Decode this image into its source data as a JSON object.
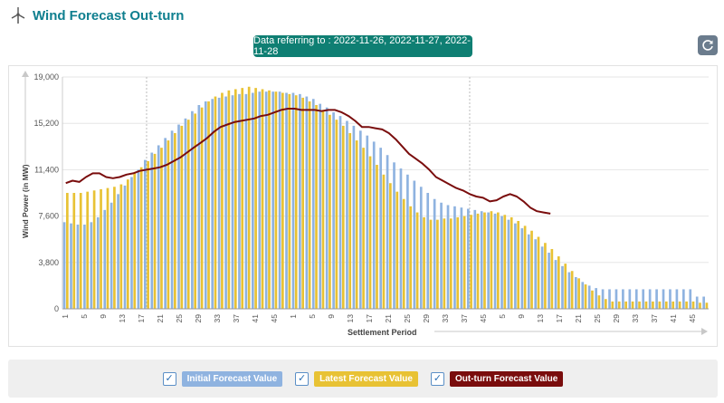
{
  "header": {
    "title": "Wind Forecast Out-turn",
    "icon": "wind-turbine-icon"
  },
  "date_pill": {
    "text": "Data referring to : 2022-11-26, 2022-11-27, 2022-11-28"
  },
  "refresh": {
    "icon": "refresh-icon"
  },
  "legend": {
    "items": [
      {
        "label": "Initial Forecast Value",
        "checked": true,
        "color": "#8fb3e0"
      },
      {
        "label": "Latest Forecast Value",
        "checked": true,
        "color": "#e8c234"
      },
      {
        "label": "Out-turn Forecast Value",
        "checked": true,
        "color": "#7a0d0d"
      }
    ]
  },
  "chart_data": {
    "type": "bar",
    "xlabel": "Settlement Period",
    "ylabel": "Wind Power (in MW)",
    "ylim": [
      0,
      19000
    ],
    "y_ticks": [
      "0",
      "3,800",
      "7,600",
      "11,400",
      "15,200",
      "19,000"
    ],
    "x_tick_labels": [
      "1",
      "5",
      "9",
      "13",
      "17",
      "21",
      "25",
      "29",
      "33",
      "37",
      "41",
      "45",
      "1",
      "5",
      "9",
      "13",
      "17",
      "21",
      "25",
      "29",
      "33",
      "37",
      "45",
      "5",
      "9",
      "13",
      "17",
      "21",
      "25",
      "29",
      "33",
      "37",
      "41",
      "45"
    ],
    "grid": true,
    "series": [
      {
        "name": "Initial Forecast Value",
        "type": "bar",
        "color": "#8fb3e0",
        "values": [
          7100,
          7000,
          6900,
          6900,
          7100,
          7500,
          8100,
          8700,
          9400,
          10100,
          10800,
          11400,
          12200,
          12800,
          13400,
          14000,
          14600,
          15100,
          15600,
          16200,
          16700,
          17000,
          17200,
          17300,
          17400,
          17500,
          17600,
          17600,
          17700,
          17800,
          17800,
          17800,
          17800,
          17700,
          17700,
          17600,
          17400,
          17200,
          16800,
          16500,
          16100,
          15800,
          15400,
          15000,
          14600,
          14200,
          13700,
          13200,
          12600,
          12000,
          11500,
          11000,
          10500,
          10000,
          9500,
          9000,
          8700,
          8500,
          8400,
          8300,
          8200,
          8100,
          8000,
          7900,
          7800,
          7600,
          7300,
          7000,
          6600,
          6100,
          5700,
          5100,
          4600,
          4000,
          3500,
          3000,
          2600,
          2200,
          1900,
          1700,
          1600,
          1600,
          1600,
          1600,
          1600,
          1600,
          1600,
          1600,
          1600,
          1600,
          1600,
          1600,
          1600,
          1600,
          1000,
          1000
        ]
      },
      {
        "name": "Latest Forecast Value",
        "type": "bar",
        "color": "#e8c234",
        "values": [
          9500,
          9500,
          9500,
          9600,
          9700,
          9800,
          9900,
          10000,
          10200,
          10600,
          11100,
          11600,
          12100,
          12700,
          13200,
          13800,
          14400,
          15000,
          15500,
          16000,
          16500,
          17000,
          17400,
          17700,
          17900,
          18000,
          18100,
          18200,
          18100,
          18000,
          17900,
          17800,
          17700,
          17600,
          17500,
          17300,
          17000,
          16700,
          16300,
          15900,
          15500,
          15000,
          14400,
          13800,
          13200,
          12500,
          11800,
          11000,
          10300,
          9600,
          9000,
          8400,
          7900,
          7500,
          7300,
          7300,
          7400,
          7400,
          7500,
          7600,
          7700,
          7800,
          7900,
          8000,
          7900,
          7700,
          7500,
          7200,
          6800,
          6400,
          5900,
          5400,
          4900,
          4300,
          3700,
          3100,
          2500,
          2000,
          1500,
          1100,
          800,
          600,
          600,
          600,
          600,
          600,
          600,
          600,
          600,
          600,
          600,
          600,
          600,
          600,
          500,
          500
        ]
      },
      {
        "name": "Out-turn Forecast Value",
        "type": "line",
        "color": "#7a0d0d",
        "values": [
          10300,
          10500,
          10400,
          10800,
          11100,
          11100,
          10800,
          10700,
          10800,
          11000,
          11100,
          11300,
          11400,
          11500,
          11600,
          11800,
          12100,
          12400,
          12800,
          13200,
          13600,
          14000,
          14500,
          14900,
          15100,
          15300,
          15400,
          15500,
          15600,
          15800,
          15900,
          16100,
          16300,
          16400,
          16400,
          16300,
          16300,
          16300,
          16200,
          16300,
          16300,
          16100,
          15800,
          15400,
          14900,
          14900,
          14800,
          14700,
          14400,
          13900,
          13300,
          12700,
          12300,
          11900,
          11400,
          10800,
          10500,
          10200,
          9900,
          9700,
          9400,
          9200,
          9100,
          8800,
          8900,
          9200,
          9400,
          9200,
          8800,
          8300,
          8000,
          7900,
          7800
        ]
      }
    ]
  }
}
